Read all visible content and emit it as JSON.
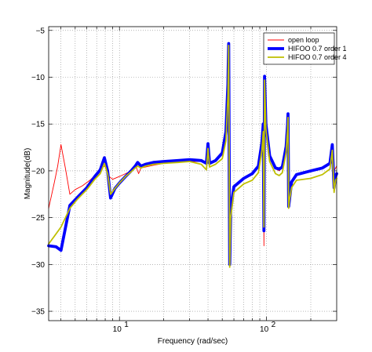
{
  "chart_data": {
    "type": "line",
    "title": "",
    "xlabel": "Frequency (rad/sec)",
    "ylabel": "Magnitude(dB)",
    "xscale": "log",
    "xlim": [
      3.3,
      300
    ],
    "ylim": [
      -36,
      -4.6
    ],
    "grid": true,
    "legend_position": "top-right",
    "x_tick_labels": [
      {
        "value": 10,
        "base": "10",
        "exp": "1"
      },
      {
        "value": 100,
        "base": "10",
        "exp": "2"
      }
    ],
    "y_ticks": [
      -35,
      -30,
      -25,
      -20,
      -15,
      -10,
      -5
    ],
    "y_tick_labels": [
      "−35",
      "−30",
      "−25",
      "−20",
      "−15",
      "−10",
      "−5"
    ],
    "series": [
      {
        "name": "open loop",
        "color": "#ff0000",
        "points": [
          [
            3.3,
            -24.0
          ],
          [
            3.6,
            -21.3
          ],
          [
            3.8,
            -19.5
          ],
          [
            4.0,
            -17.2
          ],
          [
            4.3,
            -19.8
          ],
          [
            4.6,
            -22.5
          ],
          [
            5.0,
            -22.0
          ],
          [
            5.6,
            -21.6
          ],
          [
            6.3,
            -21.0
          ],
          [
            7.0,
            -20.3
          ],
          [
            7.6,
            -19.6
          ],
          [
            8.0,
            -19.5
          ],
          [
            8.5,
            -20.6
          ],
          [
            9.0,
            -20.9
          ],
          [
            10.0,
            -20.6
          ],
          [
            11.0,
            -20.3
          ],
          [
            12.0,
            -20.0
          ],
          [
            13.0,
            -19.6
          ],
          [
            13.5,
            -20.3
          ],
          [
            14.0,
            -19.7
          ],
          [
            15.0,
            -19.6
          ],
          [
            17.0,
            -19.4
          ],
          [
            20.0,
            -19.2
          ],
          [
            25.0,
            -19.1
          ],
          [
            30.0,
            -19.0
          ],
          [
            36.0,
            -19.0
          ],
          [
            39.0,
            -19.3
          ],
          [
            40.0,
            -17.3
          ],
          [
            41.0,
            -19.2
          ],
          [
            45.0,
            -19.0
          ],
          [
            50.0,
            -18.2
          ],
          [
            53.0,
            -16.0
          ],
          [
            54.6,
            -11.0
          ],
          [
            55.3,
            -6.3
          ],
          [
            55.7,
            -18.0
          ],
          [
            56.2,
            -29.8
          ],
          [
            57.0,
            -24.5
          ],
          [
            60.0,
            -21.8
          ],
          [
            70.0,
            -20.9
          ],
          [
            80.0,
            -20.4
          ],
          [
            88.0,
            -19.5
          ],
          [
            93.0,
            -17.0
          ],
          [
            95.0,
            -15.0
          ],
          [
            96.0,
            -28.0
          ],
          [
            97.0,
            -9.8
          ],
          [
            99.0,
            -15.0
          ],
          [
            105.0,
            -18.5
          ],
          [
            115.0,
            -19.8
          ],
          [
            122.0,
            -20.0
          ],
          [
            128.0,
            -19.7
          ],
          [
            132.0,
            -18.6
          ],
          [
            136.0,
            -17.5
          ],
          [
            139.0,
            -15.2
          ],
          [
            140.0,
            -13.8
          ],
          [
            141.5,
            -23.0
          ],
          [
            143.0,
            -23.8
          ],
          [
            148.0,
            -21.3
          ],
          [
            160.0,
            -20.5
          ],
          [
            200.0,
            -20.1
          ],
          [
            240.0,
            -19.8
          ],
          [
            270.0,
            -19.2
          ],
          [
            280.0,
            -17.3
          ],
          [
            288.0,
            -20.0
          ],
          [
            300.0,
            -19.5
          ]
        ]
      },
      {
        "name": "HIFOO 0.7 order 1",
        "color": "#0000ff",
        "points": [
          [
            3.3,
            -28.0
          ],
          [
            3.7,
            -28.1
          ],
          [
            4.0,
            -28.5
          ],
          [
            4.6,
            -23.7
          ],
          [
            5.2,
            -22.8
          ],
          [
            6.0,
            -21.8
          ],
          [
            6.8,
            -20.6
          ],
          [
            7.4,
            -19.9
          ],
          [
            7.9,
            -18.6
          ],
          [
            8.3,
            -20.0
          ],
          [
            8.7,
            -22.9
          ],
          [
            9.3,
            -21.9
          ],
          [
            10.0,
            -21.3
          ],
          [
            11.0,
            -20.6
          ],
          [
            12.0,
            -20.0
          ],
          [
            12.8,
            -19.5
          ],
          [
            13.3,
            -19.1
          ],
          [
            14.0,
            -19.5
          ],
          [
            15.0,
            -19.3
          ],
          [
            17.0,
            -19.1
          ],
          [
            20.0,
            -19.0
          ],
          [
            25.0,
            -18.9
          ],
          [
            30.0,
            -18.8
          ],
          [
            36.0,
            -18.9
          ],
          [
            39.0,
            -19.2
          ],
          [
            40.0,
            -17.1
          ],
          [
            41.0,
            -19.2
          ],
          [
            45.0,
            -18.9
          ],
          [
            50.0,
            -18.1
          ],
          [
            53.0,
            -15.8
          ],
          [
            54.6,
            -10.8
          ],
          [
            55.3,
            -6.4
          ],
          [
            55.7,
            -18.0
          ],
          [
            56.2,
            -30.0
          ],
          [
            57.0,
            -24.3
          ],
          [
            60.0,
            -21.7
          ],
          [
            70.0,
            -20.8
          ],
          [
            80.0,
            -20.3
          ],
          [
            88.0,
            -19.5
          ],
          [
            93.0,
            -17.0
          ],
          [
            95.0,
            -15.0
          ],
          [
            96.0,
            -26.4
          ],
          [
            97.0,
            -9.9
          ],
          [
            99.0,
            -15.0
          ],
          [
            105.0,
            -18.4
          ],
          [
            115.0,
            -19.7
          ],
          [
            122.0,
            -19.8
          ],
          [
            128.0,
            -19.6
          ],
          [
            132.0,
            -18.5
          ],
          [
            136.0,
            -17.4
          ],
          [
            139.0,
            -15.1
          ],
          [
            140.0,
            -13.9
          ],
          [
            141.5,
            -23.8
          ],
          [
            143.0,
            -23.2
          ],
          [
            148.0,
            -21.2
          ],
          [
            160.0,
            -20.4
          ],
          [
            200.0,
            -20.0
          ],
          [
            240.0,
            -19.7
          ],
          [
            270.0,
            -19.2
          ],
          [
            280.0,
            -17.2
          ],
          [
            288.0,
            -21.8
          ],
          [
            295.0,
            -20.6
          ],
          [
            300.0,
            -20.3
          ]
        ]
      },
      {
        "name": "HIFOO 0.7 order 4",
        "color": "#bfbf00",
        "points": [
          [
            3.3,
            -27.8
          ],
          [
            3.6,
            -27.0
          ],
          [
            4.0,
            -26.0
          ],
          [
            4.6,
            -24.0
          ],
          [
            5.2,
            -23.0
          ],
          [
            6.0,
            -22.0
          ],
          [
            6.8,
            -20.9
          ],
          [
            7.4,
            -20.3
          ],
          [
            7.9,
            -19.2
          ],
          [
            8.3,
            -20.3
          ],
          [
            8.7,
            -22.5
          ],
          [
            9.3,
            -21.9
          ],
          [
            10.0,
            -21.3
          ],
          [
            11.0,
            -20.6
          ],
          [
            12.0,
            -20.1
          ],
          [
            12.8,
            -19.7
          ],
          [
            13.3,
            -19.5
          ],
          [
            14.0,
            -19.7
          ],
          [
            15.0,
            -19.5
          ],
          [
            17.0,
            -19.3
          ],
          [
            20.0,
            -19.2
          ],
          [
            25.0,
            -19.1
          ],
          [
            30.0,
            -19.0
          ],
          [
            36.0,
            -19.3
          ],
          [
            39.0,
            -19.9
          ],
          [
            40.0,
            -17.6
          ],
          [
            41.0,
            -19.6
          ],
          [
            45.0,
            -19.3
          ],
          [
            50.0,
            -18.7
          ],
          [
            53.0,
            -16.8
          ],
          [
            54.6,
            -12.0
          ],
          [
            55.3,
            -6.6
          ],
          [
            55.7,
            -18.5
          ],
          [
            56.2,
            -30.3
          ],
          [
            57.0,
            -25.0
          ],
          [
            60.0,
            -22.3
          ],
          [
            70.0,
            -21.4
          ],
          [
            80.0,
            -21.0
          ],
          [
            88.0,
            -20.2
          ],
          [
            93.0,
            -17.8
          ],
          [
            95.0,
            -15.8
          ],
          [
            96.0,
            -26.0
          ],
          [
            97.0,
            -10.3
          ],
          [
            99.0,
            -15.5
          ],
          [
            105.0,
            -19.0
          ],
          [
            115.0,
            -20.3
          ],
          [
            122.0,
            -20.5
          ],
          [
            128.0,
            -20.2
          ],
          [
            132.0,
            -19.1
          ],
          [
            136.0,
            -18.0
          ],
          [
            139.0,
            -15.6
          ],
          [
            140.0,
            -14.3
          ],
          [
            141.5,
            -24.0
          ],
          [
            143.0,
            -23.2
          ],
          [
            148.0,
            -21.8
          ],
          [
            160.0,
            -21.0
          ],
          [
            200.0,
            -20.8
          ],
          [
            240.0,
            -20.4
          ],
          [
            270.0,
            -19.8
          ],
          [
            280.0,
            -17.8
          ],
          [
            288.0,
            -22.3
          ],
          [
            295.0,
            -21.0
          ],
          [
            300.0,
            -20.8
          ]
        ]
      }
    ]
  }
}
